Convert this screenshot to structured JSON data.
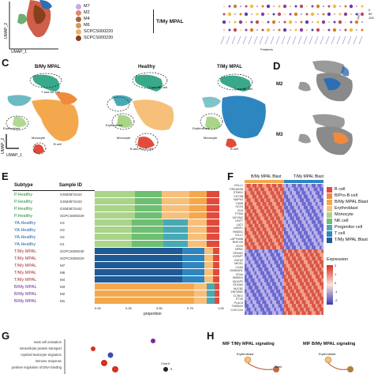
{
  "panels": [
    "C",
    "D",
    "E",
    "F",
    "G",
    "H"
  ],
  "top_legend": {
    "items": [
      {
        "label": "M7",
        "color": "#c9a9e0"
      },
      {
        "label": "M2",
        "color": "#d88a6a"
      },
      {
        "label": "M4",
        "color": "#a8623e"
      },
      {
        "label": "M6",
        "color": "#cf9c5a"
      },
      {
        "label": "SCPCS000220",
        "color": "#e8b36b"
      },
      {
        "label": "SCPCS000230",
        "color": "#8a3f1c"
      }
    ],
    "group_label": "T/My MPAL",
    "umap_y": "UMAP_2",
    "umap_x": "UMAP_1",
    "features_label": "Features",
    "pct_label": "Perc",
    "pct_values": [
      "0",
      "50",
      "100"
    ]
  },
  "panel_c": {
    "titles": [
      "B/My MPAL",
      "Healthy",
      "T/My MPAL"
    ],
    "labels": {
      "tnk": "T and NK cell",
      "erythroblast": "Erythroblast",
      "monocyte": "Monocyte",
      "bcell": "B cell",
      "bpro": "B and Pro-B cell"
    },
    "umap_y": "UMAP_2",
    "umap_x": "UMAP_1"
  },
  "panel_d": {
    "labels": [
      "M2",
      "M3"
    ]
  },
  "panel_e": {
    "header_subtype": "Subtype",
    "header_sample": "Sample ID",
    "rows": [
      {
        "subtype": "P.Healthy",
        "sample": "GSM3872444",
        "group": "ph"
      },
      {
        "subtype": "P.Healthy",
        "sample": "GSM3872443",
        "group": "ph"
      },
      {
        "subtype": "P.Healthy",
        "sample": "GSM3872442",
        "group": "ph"
      },
      {
        "subtype": "P.Healthy",
        "sample": "SCPCS000229",
        "group": "ph"
      },
      {
        "subtype": "YA.Healthy",
        "sample": "H4",
        "group": "ya"
      },
      {
        "subtype": "YA.Healthy",
        "sample": "H3",
        "group": "ya"
      },
      {
        "subtype": "YA.Healthy",
        "sample": "H2",
        "group": "ya"
      },
      {
        "subtype": "YA.Healthy",
        "sample": "H1",
        "group": "ya"
      },
      {
        "subtype": "T/My MPAL",
        "sample": "SCPCS000230",
        "group": "tm"
      },
      {
        "subtype": "T/My MPAL",
        "sample": "SCPCS000220",
        "group": "tm"
      },
      {
        "subtype": "T/My MPAL",
        "sample": "M7",
        "group": "tm"
      },
      {
        "subtype": "T/My MPAL",
        "sample": "M6",
        "group": "tm"
      },
      {
        "subtype": "T/My MPAL",
        "sample": "M4",
        "group": "tm"
      },
      {
        "subtype": "B/My MPAL",
        "sample": "M3",
        "group": "bm"
      },
      {
        "subtype": "B/My MPAL",
        "sample": "M2",
        "group": "bm"
      },
      {
        "subtype": "B/My MPAL",
        "sample": "M1",
        "group": "bm"
      }
    ],
    "ticks": [
      "0.00",
      "0.25",
      "0.50",
      "0.75",
      "1.00"
    ],
    "xlabel": "proportion"
  },
  "panel_f": {
    "col_groups": [
      "B/My MPAL Blast",
      "T/My MPAL Blast"
    ],
    "genes": [
      "VGLL1",
      "PRKAR2B",
      "STMN1",
      "CD79B",
      "MAPK4",
      "TUBB",
      "SOX4",
      "CD9",
      "PTMA",
      "MYOM2",
      "DNTT",
      "LAT2",
      "UHRF1",
      "HMGN1",
      "IGLL1",
      "LAPTM4B",
      "RNF130",
      "CD34",
      "NPM1",
      "SPINK2",
      "IGFBP7",
      "GATA2",
      "MEIS1",
      "CDK6",
      "SH3BGRL",
      "CD44",
      "SMIM24",
      "IQGAP2",
      "S100A9",
      "NUCB2",
      "ZNF385D",
      "CCND1",
      "ETV6",
      "PLAC8",
      "TMSB4X",
      "CLEC11A"
    ],
    "legend_title": "",
    "legend": [
      {
        "label": "B cell",
        "color": "#e24b3b"
      },
      {
        "label": "B/Pro-B cell",
        "color": "#f08a3c"
      },
      {
        "label": "B/My MPAL Blast",
        "color": "#f4a84d"
      },
      {
        "label": "Erythroblast",
        "color": "#f7c07a"
      },
      {
        "label": "Monocyte",
        "color": "#a9d48a"
      },
      {
        "label": "NK cell",
        "color": "#6fbf73"
      },
      {
        "label": "Progenitor cell",
        "color": "#48a9b5"
      },
      {
        "label": "T cell",
        "color": "#2e86c1"
      },
      {
        "label": "T/My MPAL Blast",
        "color": "#1f5a96"
      }
    ],
    "expr_title": "Expression",
    "expr_ticks": [
      "2",
      "1",
      "0",
      "-1",
      "-2"
    ]
  },
  "panel_g": {
    "terms": [
      "mast cell activation",
      "intracellular protein transport",
      "myeloid leukocyte migration",
      "immune response",
      "positive regulation of DNA-binding"
    ],
    "count_label": "Count",
    "count_value": "5"
  },
  "panel_h": {
    "titles": [
      "MIF T/My MPAL signaling",
      "MIF B/My MPAL signaling"
    ],
    "node_labels": [
      "Erythroblast",
      "Blast",
      "Erythroblast"
    ]
  }
}
